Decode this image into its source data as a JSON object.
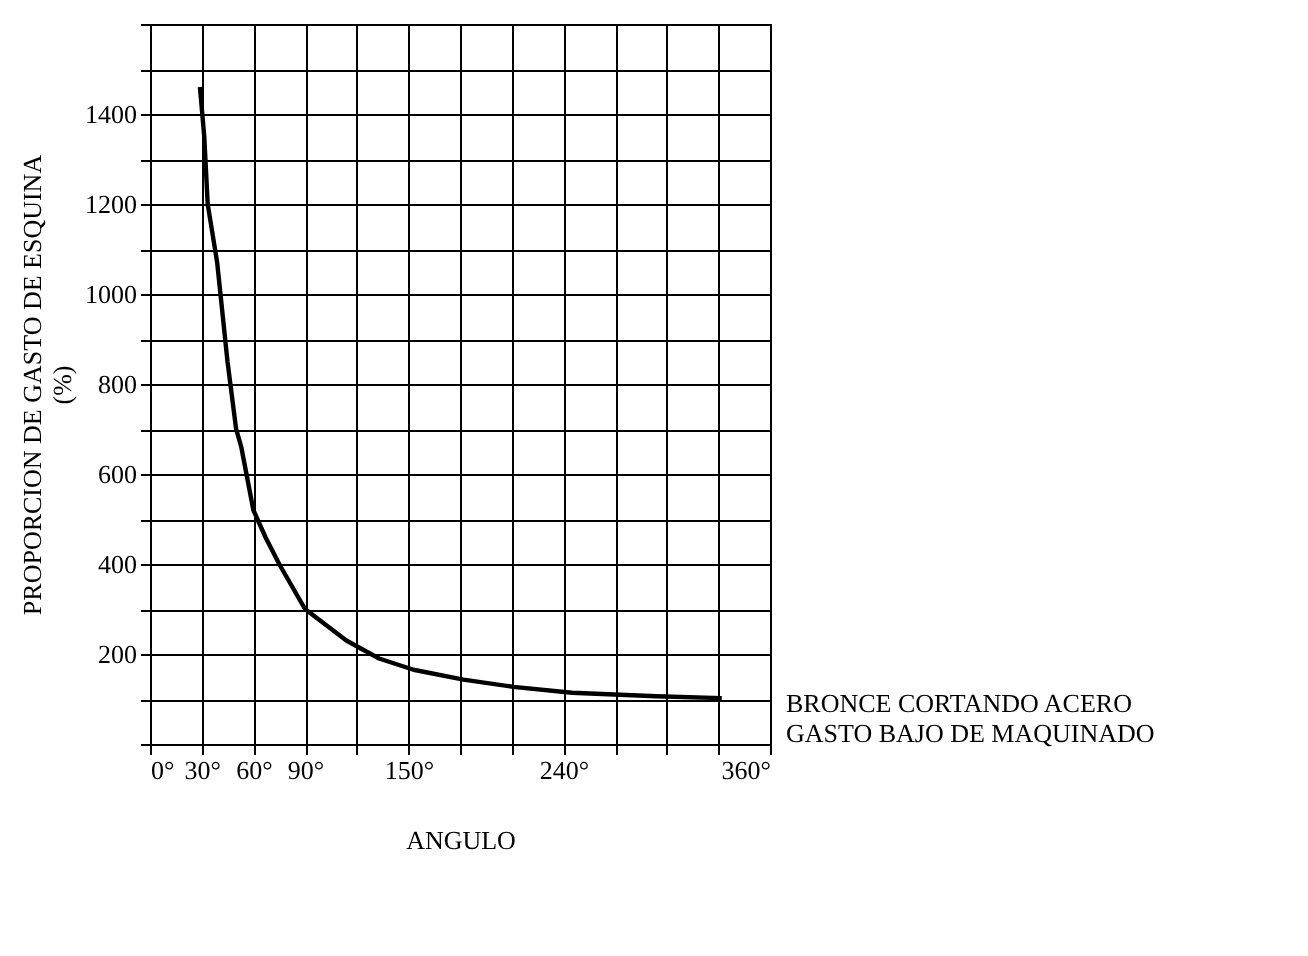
{
  "chart_data": {
    "type": "line",
    "xlabel": "ANGULO",
    "ylabel": "PROPORCION DE GASTO DE ESQUINA\n(%)",
    "x": [
      29,
      31.5,
      33.5,
      39,
      45,
      50,
      53,
      60,
      67,
      75,
      90,
      114,
      133,
      153,
      182,
      211,
      245,
      294,
      332
    ],
    "series": [
      {
        "color": "#000000",
        "values": [
          1460,
          1350,
          1200,
          1070,
          850,
          700,
          660,
          520,
          460,
          400,
          300,
          230,
          190,
          165,
          143,
          127,
          114,
          106,
          102
        ]
      }
    ],
    "xlim": [
      0,
      360
    ],
    "xticks": [
      {
        "value": 0,
        "label": "0°"
      },
      {
        "value": 30,
        "label": "30°"
      },
      {
        "value": 60,
        "label": "60°"
      },
      {
        "value": 90,
        "label": "90°"
      },
      {
        "value": 120,
        "label": null
      },
      {
        "value": 150,
        "label": "150°"
      },
      {
        "value": 180,
        "label": null
      },
      {
        "value": 210,
        "label": null
      },
      {
        "value": 240,
        "label": "240°"
      },
      {
        "value": 270,
        "label": null
      },
      {
        "value": 300,
        "label": null
      },
      {
        "value": 330,
        "label": null
      },
      {
        "value": 360,
        "label": "360°"
      }
    ],
    "ylim": [
      0,
      1600
    ],
    "yticks": [
      {
        "value": 0,
        "label": null
      },
      {
        "value": 100,
        "label": null
      },
      200,
      {
        "value": 300,
        "label": null
      },
      400,
      {
        "value": 500,
        "label": null
      },
      600,
      {
        "value": 700,
        "label": null
      },
      800,
      {
        "value": 900,
        "label": null
      },
      1000,
      {
        "value": 1100,
        "label": null
      },
      1200,
      {
        "value": 1300,
        "label": null
      },
      1400,
      {
        "value": 1500,
        "label": null
      },
      {
        "value": 1600,
        "label": null
      }
    ],
    "grid": true,
    "marker": "none",
    "line_style": "solid",
    "annotations": [
      "BRONCE CORTANDO ACERO\nGASTO BAJO DE MAQUINADO"
    ]
  }
}
